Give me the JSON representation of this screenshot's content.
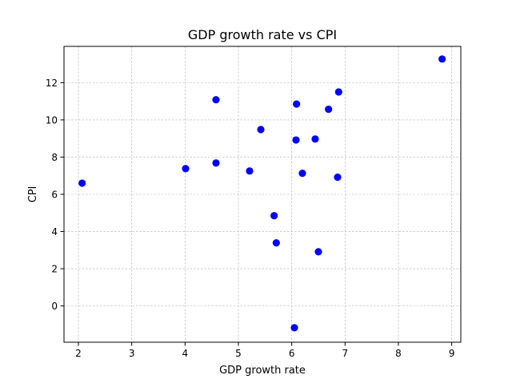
{
  "chart_data": {
    "type": "scatter",
    "title": "GDP growth rate vs CPI",
    "xlabel": "GDP growth rate",
    "ylabel": "CPI",
    "xlim": [
      1.73,
      9.17
    ],
    "ylim": [
      -1.95,
      13.95
    ],
    "xticks": [
      2,
      3,
      4,
      5,
      6,
      7,
      8,
      9
    ],
    "yticks": [
      0,
      2,
      4,
      6,
      8,
      10,
      12
    ],
    "grid": true,
    "legend": "none",
    "point_color": "#0000ff",
    "points": [
      {
        "x": 2.07,
        "y": 6.6
      },
      {
        "x": 4.01,
        "y": 7.38
      },
      {
        "x": 4.58,
        "y": 11.08
      },
      {
        "x": 4.58,
        "y": 7.68
      },
      {
        "x": 5.21,
        "y": 7.25
      },
      {
        "x": 5.42,
        "y": 9.48
      },
      {
        "x": 5.67,
        "y": 4.85
      },
      {
        "x": 5.71,
        "y": 3.39
      },
      {
        "x": 6.05,
        "y": -1.17
      },
      {
        "x": 6.08,
        "y": 8.92
      },
      {
        "x": 6.09,
        "y": 10.85
      },
      {
        "x": 6.2,
        "y": 7.13
      },
      {
        "x": 6.44,
        "y": 8.97
      },
      {
        "x": 6.5,
        "y": 2.91
      },
      {
        "x": 6.69,
        "y": 10.57
      },
      {
        "x": 6.86,
        "y": 6.92
      },
      {
        "x": 6.88,
        "y": 11.5
      },
      {
        "x": 8.82,
        "y": 13.27
      }
    ]
  }
}
